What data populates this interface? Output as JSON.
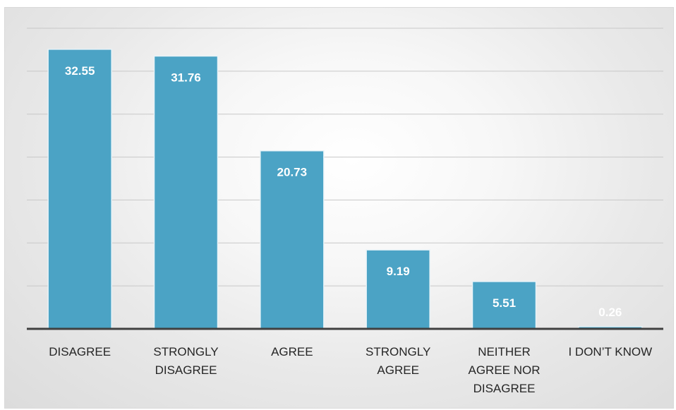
{
  "chart_data": {
    "type": "bar",
    "categories": [
      [
        "DISAGREE"
      ],
      [
        "STRONGLY",
        "DISAGREE"
      ],
      [
        "AGREE"
      ],
      [
        "STRONGLY",
        "AGREE"
      ],
      [
        "NEITHER",
        "AGREE NOR",
        "DISAGREE"
      ],
      [
        "I DON’T KNOW"
      ]
    ],
    "values": [
      32.55,
      31.76,
      20.73,
      9.19,
      5.51,
      0.26
    ],
    "value_labels": [
      "32.55",
      "31.76",
      "20.73",
      "9.19",
      "5.51",
      "0.26"
    ],
    "ylim": [
      0,
      35
    ],
    "gridline_step": 5,
    "grid": true,
    "legend": "none",
    "colors": {
      "bar": "#4ba3c5",
      "bar_edge": "#e8f3f8",
      "gridline": "#c8c8c8",
      "baseline": "#404040",
      "value_label": "#ffffff",
      "tick_label": "#262626"
    }
  }
}
